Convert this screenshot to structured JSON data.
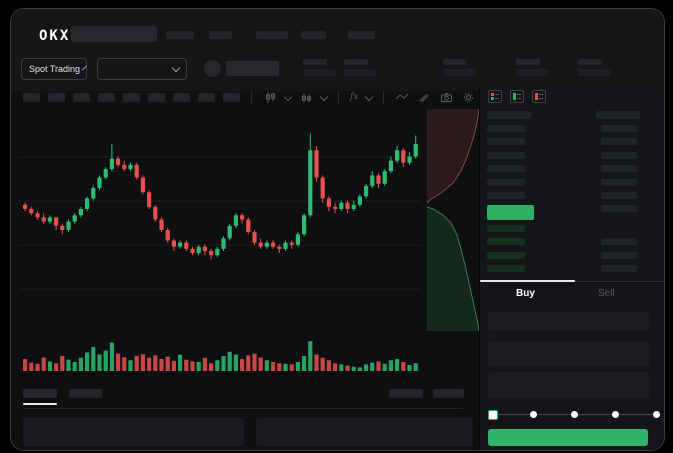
{
  "brand": {
    "logo_text": "OKX"
  },
  "pair_bar": {
    "market_selector_label": "Spot Trading"
  },
  "trade_panel": {
    "buy_tab_label": "Buy",
    "sell_tab_label": "Sell"
  },
  "icons": [
    "search-skeleton",
    "chevron-down-icon",
    "coin-avatar",
    "candle-style-icon",
    "candle-style-alt-icon",
    "indicators-fx-icon",
    "line-tool-icon",
    "draw-tool-icon",
    "camera-icon",
    "settings-gear-icon",
    "fullscreen-icon",
    "orderbook-combined-icon",
    "orderbook-bids-icon",
    "orderbook-asks-icon"
  ],
  "colors": {
    "candle_green": "#2EBD70",
    "candle_red": "#E6514E",
    "ob_price_green": "#2EAF64",
    "buy_button_green": "#2EB368",
    "depth_ask_fill": "#2A1A1B",
    "depth_ask_line": "#8A4A46",
    "depth_bid_fill": "#12291C",
    "depth_bid_line": "#3F7A5C",
    "grid_line": "#1A1C1E",
    "active_tab_underline": "#E8EAED"
  },
  "skeleton": {
    "top_nav_items": 5,
    "pair_stats": 5,
    "timeframe_slots": 9,
    "ob_ask_rows": 6,
    "ob_bid_rows": 4,
    "ob_right_top_rows": 7,
    "ob_right_bottom_rows": 3,
    "slider_stops": 5,
    "slider_active_index": 0
  },
  "chart_data": {
    "type": "candlestick",
    "title": "",
    "xlabel": "",
    "ylabel": "",
    "ylim": [
      30,
      100
    ],
    "grid": true,
    "candles": [
      [
        62,
        63,
        59,
        60
      ],
      [
        60,
        61,
        57,
        58
      ],
      [
        58,
        59,
        55,
        56
      ],
      [
        56,
        58,
        53,
        54
      ],
      [
        54,
        57,
        53,
        56
      ],
      [
        56,
        56,
        50,
        52
      ],
      [
        52,
        53,
        48,
        50
      ],
      [
        50,
        55,
        49,
        54
      ],
      [
        54,
        58,
        53,
        57
      ],
      [
        57,
        61,
        56,
        60
      ],
      [
        60,
        66,
        59,
        65
      ],
      [
        65,
        71,
        64,
        70
      ],
      [
        70,
        76,
        69,
        75
      ],
      [
        75,
        80,
        74,
        79
      ],
      [
        79,
        91,
        78,
        84
      ],
      [
        84,
        85,
        80,
        81
      ],
      [
        81,
        83,
        78,
        79
      ],
      [
        79,
        82,
        78,
        81
      ],
      [
        81,
        82,
        74,
        75
      ],
      [
        75,
        76,
        67,
        68
      ],
      [
        68,
        69,
        60,
        61
      ],
      [
        61,
        62,
        54,
        55
      ],
      [
        55,
        56,
        49,
        50
      ],
      [
        50,
        51,
        44,
        45
      ],
      [
        45,
        46,
        40,
        42
      ],
      [
        42,
        45,
        41,
        44
      ],
      [
        44,
        45,
        40,
        41
      ],
      [
        41,
        42,
        38,
        39
      ],
      [
        39,
        43,
        38,
        42
      ],
      [
        42,
        43,
        38,
        40
      ],
      [
        40,
        41,
        36,
        38
      ],
      [
        38,
        42,
        37,
        41
      ],
      [
        41,
        47,
        40,
        46
      ],
      [
        46,
        53,
        45,
        52
      ],
      [
        52,
        58,
        51,
        57
      ],
      [
        57,
        58,
        53,
        55
      ],
      [
        55,
        56,
        48,
        49
      ],
      [
        49,
        50,
        43,
        44
      ],
      [
        44,
        46,
        41,
        42
      ],
      [
        42,
        45,
        41,
        44
      ],
      [
        44,
        45,
        41,
        42
      ],
      [
        42,
        43,
        39,
        41
      ],
      [
        41,
        45,
        40,
        44
      ],
      [
        44,
        45,
        41,
        43
      ],
      [
        43,
        49,
        42,
        48
      ],
      [
        48,
        58,
        47,
        57
      ],
      [
        57,
        96,
        56,
        88
      ],
      [
        88,
        90,
        73,
        75
      ],
      [
        75,
        76,
        63,
        65
      ],
      [
        65,
        66,
        59,
        61
      ],
      [
        61,
        63,
        58,
        60
      ],
      [
        60,
        64,
        59,
        63
      ],
      [
        63,
        64,
        58,
        60
      ],
      [
        60,
        64,
        59,
        62
      ],
      [
        62,
        67,
        61,
        66
      ],
      [
        66,
        72,
        65,
        71
      ],
      [
        71,
        78,
        70,
        76
      ],
      [
        76,
        77,
        70,
        72
      ],
      [
        72,
        79,
        71,
        78
      ],
      [
        78,
        85,
        77,
        83
      ],
      [
        83,
        90,
        82,
        88
      ],
      [
        88,
        89,
        80,
        82
      ],
      [
        82,
        87,
        81,
        85
      ],
      [
        85,
        95,
        84,
        91
      ]
    ],
    "volumes": [
      40,
      28,
      24,
      45,
      32,
      26,
      50,
      38,
      30,
      44,
      62,
      80,
      55,
      68,
      95,
      58,
      46,
      36,
      50,
      56,
      44,
      52,
      40,
      48,
      34,
      54,
      38,
      32,
      30,
      44,
      26,
      36,
      50,
      64,
      55,
      40,
      52,
      58,
      45,
      36,
      30,
      26,
      24,
      22,
      30,
      50,
      100,
      55,
      44,
      36,
      26,
      22,
      18,
      14,
      12,
      22,
      28,
      32,
      24,
      36,
      40,
      30,
      20,
      26
    ],
    "depth": {
      "asks_curve": [
        [
          52,
          0
        ],
        [
          50,
          14
        ],
        [
          46,
          30
        ],
        [
          40,
          48
        ],
        [
          34,
          62
        ],
        [
          26,
          74
        ],
        [
          14,
          84
        ],
        [
          4,
          90
        ],
        [
          0,
          94
        ]
      ],
      "bids_curve": [
        [
          0,
          98
        ],
        [
          6,
          100
        ],
        [
          16,
          106
        ],
        [
          24,
          114
        ],
        [
          30,
          126
        ],
        [
          34,
          140
        ],
        [
          38,
          156
        ],
        [
          42,
          174
        ],
        [
          46,
          192
        ],
        [
          50,
          210
        ],
        [
          52,
          222
        ]
      ]
    }
  }
}
